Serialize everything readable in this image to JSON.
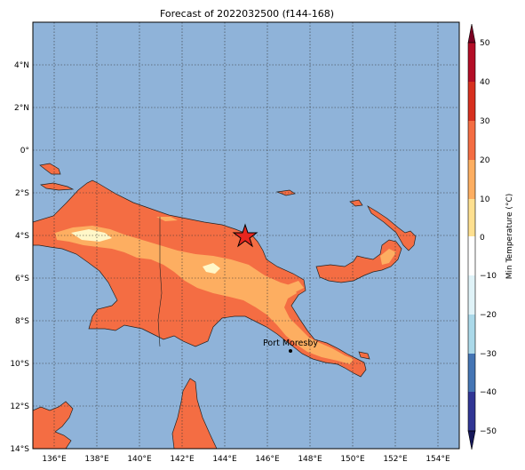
{
  "title": "Forecast of 2022032500 (f144-168)",
  "map": {
    "lon_range": [
      135,
      155
    ],
    "lat_range": [
      -14,
      6
    ],
    "ocean_color": "#8fb3d9",
    "lon_ticks": [
      "136°E",
      "138°E",
      "140°E",
      "142°E",
      "144°E",
      "146°E",
      "148°E",
      "150°E",
      "152°E",
      "154°E"
    ],
    "lat_ticks": [
      "4°N",
      "2°N",
      "0°",
      "2°S",
      "4°S",
      "6°S",
      "8°S",
      "10°S",
      "12°S",
      "14°S"
    ],
    "marker": {
      "symbol": "star-icon",
      "lon": 145,
      "lat": -4.1,
      "color": "#e8251e"
    },
    "city": {
      "name": "Port Moresby",
      "lon": 147.2,
      "lat": -9.45
    }
  },
  "colorbar": {
    "label": "Min Temperature (°C)",
    "ticks": [
      "50",
      "40",
      "30",
      "20",
      "10",
      "0",
      "−10",
      "−20",
      "−30",
      "−40",
      "−50"
    ],
    "colors": [
      "#7a0022",
      "#b30d26",
      "#d7301f",
      "#f46d43",
      "#fdae61",
      "#fee090",
      "#ffffcc",
      "#e0f3f8",
      "#abd9e9",
      "#74add1",
      "#4575b4",
      "#313695",
      "#16185a"
    ],
    "levels": [
      -50,
      -40,
      -30,
      -20,
      -10,
      0,
      10,
      20,
      30,
      40,
      50
    ]
  },
  "legend_colors": {
    "band_20_30": "#f46d43",
    "band_10_20": "#fdae61",
    "band_0_10": "#fff7c8"
  }
}
